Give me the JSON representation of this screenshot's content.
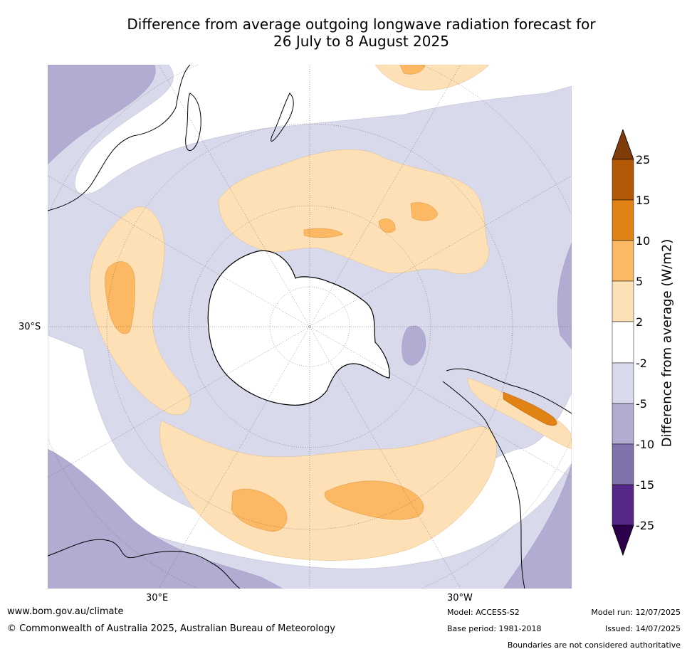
{
  "title": {
    "line1": "Difference from average outgoing longwave radiation forecast for",
    "line2": "26 July to 8 August 2025"
  },
  "map": {
    "projection": "south-polar-stereographic",
    "lat_labels": [
      "30°S"
    ],
    "lon_labels": [
      "30°E",
      "30°W"
    ]
  },
  "colorbar": {
    "label": "Difference from average (W/m2)",
    "ticks": [
      "25",
      "15",
      "10",
      "5",
      "2",
      "-2",
      "-5",
      "-10",
      "-15",
      "-25"
    ],
    "colors": [
      "#7f3b08",
      "#b35806",
      "#e08214",
      "#fdb863",
      "#fee0b6",
      "#ffffff",
      "#d8daeb",
      "#b2abd2",
      "#8073ac",
      "#542788",
      "#2d004b"
    ]
  },
  "footer": {
    "website": "www.bom.gov.au/climate",
    "copyright": "© Commonwealth of Australia 2025, Australian Bureau of Meteorology",
    "model": "Model: ACCESS-S2",
    "base_period": "Base period: 1981-2018",
    "model_run": "Model run: 12/07/2025",
    "issued": "Issued: 14/07/2025",
    "disclaimer": "Boundaries are not considered authoritative"
  }
}
